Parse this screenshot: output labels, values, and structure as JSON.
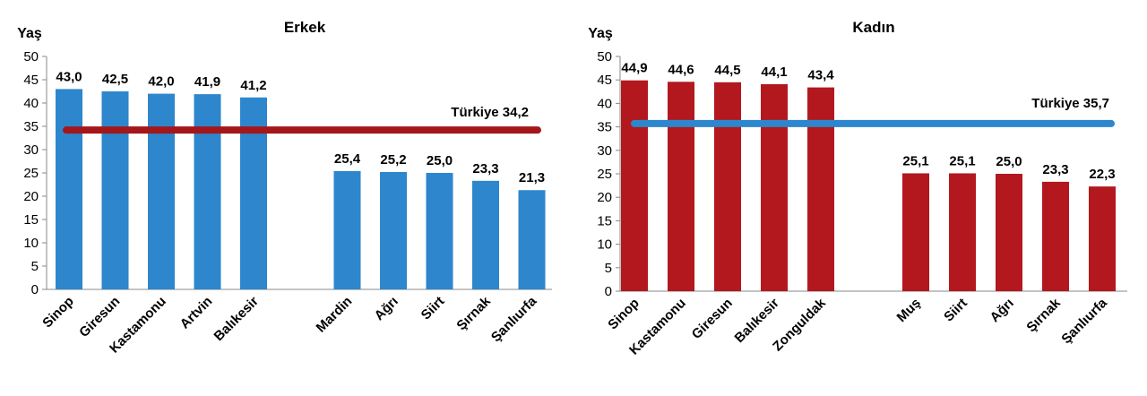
{
  "chart_data": [
    {
      "type": "bar",
      "title": "Erkek",
      "ylabel": "Yaş",
      "ylim": [
        0,
        50
      ],
      "yticks": [
        "0",
        "5",
        "10",
        "15",
        "20",
        "25",
        "30",
        "35",
        "40",
        "45",
        "50"
      ],
      "categories": [
        "Sinop",
        "Giresun",
        "Kastamonu",
        "Artvin",
        "Balıkesir",
        "Mardin",
        "Ağrı",
        "Siirt",
        "Şırnak",
        "Şanlıurfa"
      ],
      "values": [
        43.0,
        42.5,
        42.0,
        41.9,
        41.2,
        25.4,
        25.2,
        25.0,
        23.3,
        21.3
      ],
      "value_labels": [
        "43,0",
        "42,5",
        "42,0",
        "41,9",
        "41,2",
        "25,4",
        "25,2",
        "25,0",
        "23,3",
        "21,3"
      ],
      "bar_color": "#2E86CC",
      "reference": {
        "label": "Türkiye 34,2",
        "value": 34.2,
        "color": "#A4161A"
      }
    },
    {
      "type": "bar",
      "title": "Kadın",
      "ylabel": "Yaş",
      "ylim": [
        0,
        50
      ],
      "yticks": [
        "0",
        "5",
        "10",
        "15",
        "20",
        "25",
        "30",
        "35",
        "40",
        "45",
        "50"
      ],
      "categories": [
        "Sinop",
        "Kastamonu",
        "Giresun",
        "Balıkesir",
        "Zonguldak",
        "Muş",
        "Siirt",
        "Ağrı",
        "Şırnak",
        "Şanlıurfa"
      ],
      "values": [
        44.9,
        44.6,
        44.5,
        44.1,
        43.4,
        25.1,
        25.1,
        25.0,
        23.3,
        22.3
      ],
      "value_labels": [
        "44,9",
        "44,6",
        "44,5",
        "44,1",
        "43,4",
        "25,1",
        "25,1",
        "25,0",
        "23,3",
        "22,3"
      ],
      "bar_color": "#B2181E",
      "reference": {
        "label": "Türkiye 35,7",
        "value": 35.7,
        "color": "#2E86CC"
      }
    }
  ]
}
